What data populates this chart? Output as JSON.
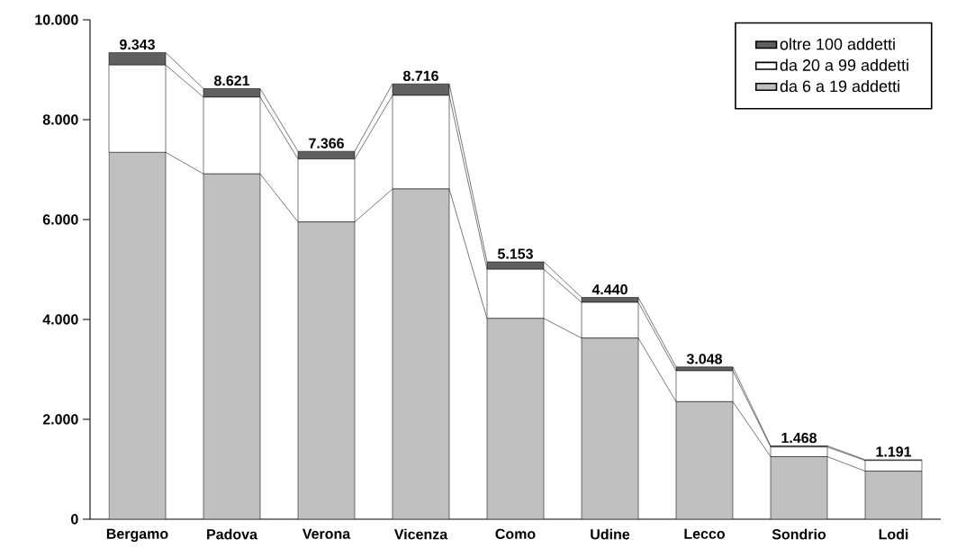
{
  "chart_data": {
    "type": "bar",
    "stacked": true,
    "categories": [
      "Bergamo",
      "Padova",
      "Verona",
      "Vicenza",
      "Como",
      "Udine",
      "Lecco",
      "Sondrio",
      "Lodi"
    ],
    "series": [
      {
        "name": "da 6 a 19 addetti",
        "color": "#c0c0c0",
        "values": [
          7346,
          6914,
          5952,
          6613,
          4020,
          3627,
          2353,
          1252,
          962
        ]
      },
      {
        "name": "da 20 a 99 addetti",
        "color": "#ffffff",
        "values": [
          1748,
          1536,
          1261,
          1873,
          984,
          715,
          618,
          193,
          213
        ]
      },
      {
        "name": "oltre 100 addetti",
        "color": "#606060",
        "values": [
          249,
          171,
          153,
          230,
          149,
          98,
          77,
          23,
          16
        ]
      }
    ],
    "totals": [
      "9.343",
      "8.621",
      "7.366",
      "8.716",
      "5.153",
      "4.440",
      "3.048",
      "1.468",
      "1.191"
    ],
    "ylim": [
      0,
      10000
    ],
    "yticks": [
      0,
      {
        "value": 2000,
        "label": "2.000"
      },
      {
        "value": 4000,
        "label": "4.000"
      },
      {
        "value": 6000,
        "label": "6.000"
      },
      {
        "value": 8000,
        "label": "8.000"
      },
      {
        "value": 10000,
        "label": "10.000"
      }
    ],
    "legend": "top right"
  }
}
